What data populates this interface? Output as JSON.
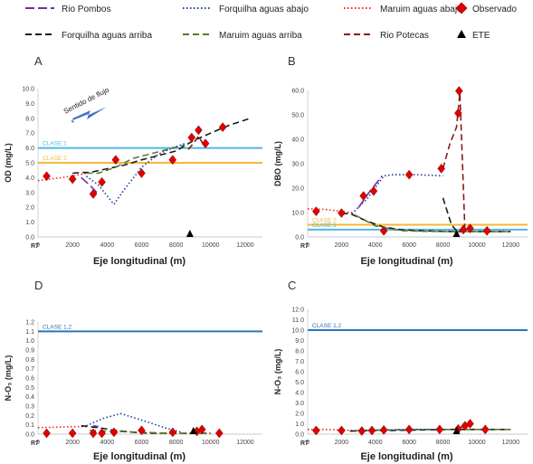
{
  "legend": {
    "items": [
      {
        "key": "rio_pombos",
        "label": "Rio Pombos",
        "color": "#7030A0",
        "dash": "10,4",
        "mark": "line"
      },
      {
        "key": "forq_abajo",
        "label": "Forquilha aguas abajo",
        "color": "#1F3C99",
        "dash": "1.5,2.5",
        "mark": "line"
      },
      {
        "key": "maruim_abajo",
        "label": "Maruim aguas abajo",
        "color": "#FF2020",
        "dash": "1.5,2.5",
        "mark": "line"
      },
      {
        "key": "observado",
        "label": "Observado",
        "color": "#E00000",
        "dash": "",
        "mark": "diamond"
      },
      {
        "key": "forq_arriba",
        "label": "Forquilha aguas arriba",
        "color": "#1A1A1A",
        "dash": "7,4",
        "mark": "line"
      },
      {
        "key": "maruim_arriba",
        "label": "Maruim aguas arriba",
        "color": "#5A7A2A",
        "dash": "7,4",
        "mark": "line"
      },
      {
        "key": "rio_potecas",
        "label": "Rio Potecas",
        "color": "#8B1A1A",
        "dash": "7,4",
        "mark": "line"
      },
      {
        "key": "ete",
        "label": "ETE",
        "color": "#000000",
        "dash": "",
        "mark": "triangle"
      }
    ]
  },
  "chart_data": [
    {
      "panel": "A",
      "type": "line",
      "ylabel": "OD (mg/L)",
      "xlabel": "Eje longitudinal (m)",
      "r7": "R7",
      "ylim": [
        0,
        10
      ],
      "yticks": [
        "0.0",
        "1.0",
        "2.0",
        "3.0",
        "4.0",
        "5.0",
        "6.0",
        "7.0",
        "8.0",
        "9.0",
        "10.0"
      ],
      "xlim": [
        0,
        13000
      ],
      "xticks": [
        "0",
        "2000",
        "4000",
        "6000",
        "8000",
        "10000",
        "12000"
      ],
      "annotation": "Sentido de flujo",
      "refs": [
        {
          "label": "CLASE 1",
          "y": 6.0,
          "color": "#4FB7E6"
        },
        {
          "label": "CLASE 2",
          "y": 5.0,
          "color": "#F4B83A"
        }
      ],
      "ete": 8800,
      "series": [
        {
          "key": "maruim_abajo",
          "x": [
            0,
            1000,
            2000,
            2800
          ],
          "y": [
            3.8,
            3.95,
            4.1,
            4.3
          ]
        },
        {
          "key": "forq_arriba",
          "x": [
            2000,
            2500,
            3000,
            4000,
            5000,
            6000,
            7000,
            8000,
            9000,
            10000,
            11000,
            12300
          ],
          "y": [
            4.3,
            4.35,
            4.35,
            4.6,
            4.85,
            5.2,
            5.5,
            5.8,
            6.5,
            7.0,
            7.5,
            8.0
          ]
        },
        {
          "key": "maruim_arriba",
          "x": [
            2800,
            3500,
            4500,
            5500,
            6500,
            7500,
            8500
          ],
          "y": [
            4.3,
            4.3,
            4.7,
            5.3,
            5.6,
            5.9,
            6.2
          ]
        },
        {
          "key": "rio_pombos",
          "x": [
            2500,
            3000,
            3400,
            3600
          ],
          "y": [
            4.0,
            3.5,
            3.0,
            2.9
          ]
        },
        {
          "key": "forq_abajo",
          "x": [
            2800,
            3500,
            4400,
            5000,
            6000,
            7000,
            7800,
            8500
          ],
          "y": [
            4.1,
            3.5,
            2.2,
            3.2,
            4.7,
            5.6,
            6.0,
            6.3
          ]
        },
        {
          "key": "rio_potecas",
          "x": [
            8700,
            9000,
            9300,
            9600
          ],
          "y": [
            5.9,
            6.3,
            6.8,
            6.2
          ]
        }
      ],
      "observed": [
        [
          500,
          4.1
        ],
        [
          2000,
          3.9
        ],
        [
          3200,
          2.9
        ],
        [
          3700,
          3.7
        ],
        [
          4500,
          5.2
        ],
        [
          6000,
          4.3
        ],
        [
          7800,
          5.2
        ],
        [
          8900,
          6.7
        ],
        [
          9300,
          7.2
        ],
        [
          9700,
          6.3
        ],
        [
          10700,
          7.4
        ]
      ]
    },
    {
      "panel": "B",
      "type": "line",
      "ylabel": "DBO (mg/L)",
      "xlabel": "Eje longitudinal (m)",
      "r7": "R7",
      "ylim": [
        0,
        60
      ],
      "yticks": [
        "0.0",
        "10.0",
        "20.0",
        "30.0",
        "40.0",
        "50.0",
        "60.0"
      ],
      "xlim": [
        0,
        13000
      ],
      "xticks": [
        "0",
        "2000",
        "4000",
        "6000",
        "8000",
        "10000",
        "12000"
      ],
      "refs": [
        {
          "label": "CLASE 2",
          "y": 5.0,
          "color": "#F4B83A"
        },
        {
          "label": "CLASE 1",
          "y": 3.0,
          "color": "#4FB7E6"
        }
      ],
      "ete": 8800,
      "series": [
        {
          "key": "maruim_abajo",
          "x": [
            0,
            1000,
            2000,
            2800
          ],
          "y": [
            11.5,
            11.3,
            10.5,
            9.8
          ]
        },
        {
          "key": "forq_arriba",
          "x": [
            2000,
            2500,
            3500,
            4500,
            5500,
            6500,
            7500,
            8500,
            12000
          ],
          "y": [
            9.5,
            9.6,
            6.5,
            4.0,
            3.0,
            2.6,
            2.4,
            2.2,
            2.2
          ]
        },
        {
          "key": "maruim_arriba",
          "x": [
            2800,
            4000,
            5500,
            7000,
            8500,
            12000
          ],
          "y": [
            9.0,
            4.5,
            2.6,
            2.3,
            2.2,
            2.2
          ]
        },
        {
          "key": "forq_abajo",
          "x": [
            2600,
            3500,
            4500,
            5000,
            6500,
            8000
          ],
          "y": [
            9.5,
            15.5,
            25.0,
            25.5,
            25.5,
            25.0
          ]
        },
        {
          "key": "rio_pombos",
          "x": [
            3000,
            3600,
            4400
          ],
          "y": [
            12.0,
            18.0,
            25.0
          ]
        },
        {
          "key": "rio_potecas",
          "x": [
            8000,
            8400,
            8800,
            9000,
            9300
          ],
          "y": [
            28.0,
            38.0,
            45.0,
            59.0,
            2.5
          ]
        },
        {
          "key": "forq_arriba_b",
          "x": [
            8000,
            8500,
            8800
          ],
          "y": [
            16.0,
            5.0,
            2.5
          ]
        }
      ],
      "observed": [
        [
          500,
          10.5
        ],
        [
          2000,
          9.8
        ],
        [
          3300,
          16.8
        ],
        [
          3900,
          18.8
        ],
        [
          4500,
          2.5
        ],
        [
          6000,
          25.5
        ],
        [
          7900,
          28.0
        ],
        [
          8900,
          50.7
        ],
        [
          8950,
          59.8
        ],
        [
          9200,
          3.0
        ],
        [
          9600,
          3.5
        ],
        [
          10600,
          2.5
        ]
      ]
    },
    {
      "panel": "D",
      "type": "line",
      "ylabel": "N-O₃ (mg/L)",
      "xlabel": "Eje longitudinal (m)",
      "r7": "R7",
      "ylim": [
        0,
        1.2
      ],
      "yticks": [
        "0.0",
        "0.1",
        "0.2",
        "0.3",
        "0.4",
        "0.5",
        "0.6",
        "0.7",
        "0.8",
        "0.9",
        "1.0",
        "1.1",
        "1.2"
      ],
      "xlim": [
        0,
        13000
      ],
      "xticks": [
        "0",
        "2000",
        "4000",
        "6000",
        "8000",
        "10000",
        "12000"
      ],
      "refs": [
        {
          "label": "CLASE 1,2",
          "y": 1.1,
          "color": "#2E75B6"
        }
      ],
      "ete": 9000,
      "series": [
        {
          "key": "maruim_abajo",
          "x": [
            0,
            1000,
            2000,
            2800
          ],
          "y": [
            0.07,
            0.075,
            0.08,
            0.08
          ]
        },
        {
          "key": "forq_arriba",
          "x": [
            2500,
            3500,
            4500,
            5500,
            6500,
            7500,
            8500,
            10000
          ],
          "y": [
            0.09,
            0.07,
            0.04,
            0.02,
            0.01,
            0.01,
            0.01,
            0.01
          ]
        },
        {
          "key": "maruim_arriba",
          "x": [
            3000,
            4500,
            6000,
            7500,
            9000,
            10000
          ],
          "y": [
            0.04,
            0.03,
            0.02,
            0.01,
            0.01,
            0.01
          ]
        },
        {
          "key": "forq_abajo",
          "x": [
            2800,
            3800,
            4800,
            6000,
            7500,
            8300
          ],
          "y": [
            0.09,
            0.17,
            0.22,
            0.15,
            0.06,
            0.02
          ]
        },
        {
          "key": "rio_pombos",
          "x": [
            3200,
            3500
          ],
          "y": [
            0.09,
            0.08
          ]
        },
        {
          "key": "rio_potecas",
          "x": [
            9200,
            9500
          ],
          "y": [
            0.02,
            0.04
          ]
        }
      ],
      "observed": [
        [
          500,
          0.01
        ],
        [
          2000,
          0.01
        ],
        [
          3200,
          0.01
        ],
        [
          3700,
          0.01
        ],
        [
          4400,
          0.02
        ],
        [
          6000,
          0.04
        ],
        [
          7800,
          0.02
        ],
        [
          9200,
          0.03
        ],
        [
          9500,
          0.05
        ],
        [
          10500,
          0.01
        ]
      ]
    },
    {
      "panel": "C",
      "type": "line",
      "ylabel": "N-O₃ (mg/L)",
      "xlabel": "Eje longitudinal (m)",
      "r7": "R7",
      "ylim": [
        0,
        12
      ],
      "yticks": [
        "0.0",
        "1.0",
        "2.0",
        "3.0",
        "4.0",
        "5.0",
        "6.0",
        "7.0",
        "8.0",
        "9.0",
        "10.0",
        "11.0",
        "12.0"
      ],
      "xlim": [
        0,
        13000
      ],
      "xticks": [
        "0",
        "2000",
        "4000",
        "6000",
        "8000",
        "10000",
        "12000"
      ],
      "refs": [
        {
          "label": "CLASE 1,2",
          "y": 10.0,
          "color": "#2E75B6"
        }
      ],
      "ete": 8800,
      "series": [
        {
          "key": "maruim_abajo",
          "x": [
            0,
            1000,
            2000,
            2800
          ],
          "y": [
            0.45,
            0.45,
            0.4,
            0.35
          ]
        },
        {
          "key": "forq_arriba",
          "x": [
            2500,
            4500,
            6500,
            8500,
            10000,
            12000
          ],
          "y": [
            0.3,
            0.35,
            0.4,
            0.45,
            0.45,
            0.45
          ]
        },
        {
          "key": "maruim_arriba",
          "x": [
            2800,
            4500,
            6500,
            8500,
            10000,
            12000
          ],
          "y": [
            0.35,
            0.4,
            0.45,
            0.45,
            0.45,
            0.45
          ]
        },
        {
          "key": "forq_abajo",
          "x": [
            2800,
            4500,
            6500,
            8000
          ],
          "y": [
            0.3,
            0.4,
            0.45,
            0.45
          ]
        },
        {
          "key": "rio_potecas",
          "x": [
            8800,
            9300,
            9600
          ],
          "y": [
            0.5,
            0.8,
            1.1
          ]
        }
      ],
      "observed": [
        [
          500,
          0.35
        ],
        [
          2000,
          0.35
        ],
        [
          3200,
          0.3
        ],
        [
          3800,
          0.35
        ],
        [
          4500,
          0.4
        ],
        [
          6000,
          0.45
        ],
        [
          7800,
          0.45
        ],
        [
          8900,
          0.5
        ],
        [
          9300,
          0.8
        ],
        [
          9600,
          1.0
        ],
        [
          10500,
          0.45
        ]
      ]
    }
  ]
}
